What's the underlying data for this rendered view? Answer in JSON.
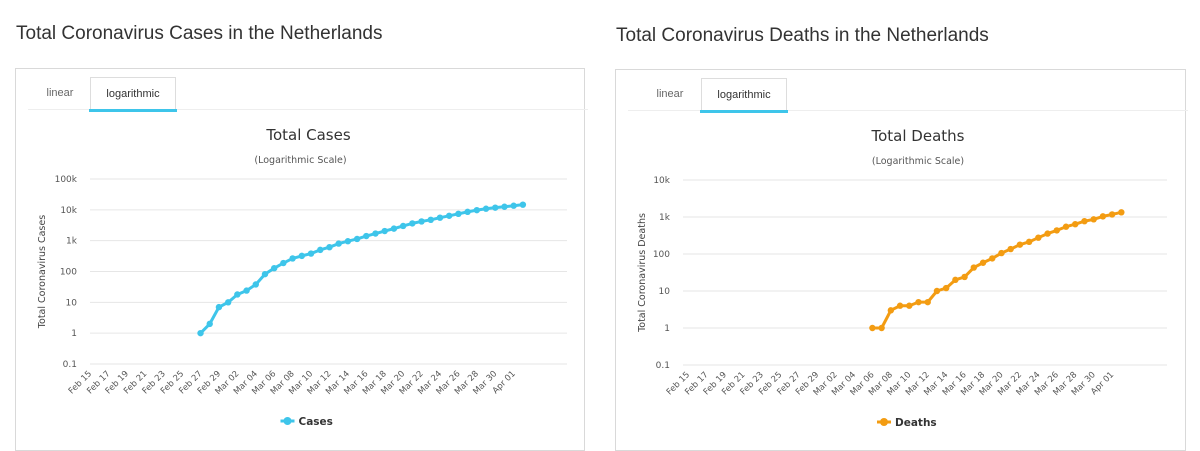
{
  "panels": [
    {
      "heading": "Total Coronavirus Cases in the Netherlands",
      "tabs": [
        "linear",
        "logarithmic"
      ],
      "active_tab": "logarithmic",
      "accent_color": "#3ec5ea"
    },
    {
      "heading": "Total Coronavirus Deaths in the Netherlands",
      "tabs": [
        "linear",
        "logarithmic"
      ],
      "active_tab": "logarithmic",
      "accent_color": "#3ec5ea"
    }
  ],
  "chart_data": [
    {
      "type": "line",
      "title": "Total Cases",
      "subtitle": "(Logarithmic Scale)",
      "ylabel": "Total Coronavirus Cases",
      "xlabel": "",
      "y_scale": "log",
      "ylim": [
        0.1,
        100000
      ],
      "y_ticks": [
        "100k",
        "10k",
        "1k",
        "100",
        "10",
        "1",
        "0.1"
      ],
      "grid": true,
      "legend": "bottom-center",
      "x_tick_labels": [
        "Feb 15",
        "Feb 17",
        "Feb 19",
        "Feb 21",
        "Feb 23",
        "Feb 25",
        "Feb 27",
        "Feb 29",
        "Mar 02",
        "Mar 04",
        "Mar 06",
        "Mar 08",
        "Mar 10",
        "Mar 12",
        "Mar 14",
        "Mar 16",
        "Mar 18",
        "Mar 20",
        "Mar 22",
        "Mar 24",
        "Mar 26",
        "Mar 28",
        "Mar 30",
        "Apr 01"
      ],
      "x": [
        "Feb 15",
        "Feb 16",
        "Feb 17",
        "Feb 18",
        "Feb 19",
        "Feb 20",
        "Feb 21",
        "Feb 22",
        "Feb 23",
        "Feb 24",
        "Feb 25",
        "Feb 26",
        "Feb 27",
        "Feb 28",
        "Feb 29",
        "Mar 01",
        "Mar 02",
        "Mar 03",
        "Mar 04",
        "Mar 05",
        "Mar 06",
        "Mar 07",
        "Mar 08",
        "Mar 09",
        "Mar 10",
        "Mar 11",
        "Mar 12",
        "Mar 13",
        "Mar 14",
        "Mar 15",
        "Mar 16",
        "Mar 17",
        "Mar 18",
        "Mar 19",
        "Mar 20",
        "Mar 21",
        "Mar 22",
        "Mar 23",
        "Mar 24",
        "Mar 25",
        "Mar 26",
        "Mar 27",
        "Mar 28",
        "Mar 29",
        "Mar 30",
        "Mar 31",
        "Apr 01",
        "Apr 02"
      ],
      "series": [
        {
          "name": "Cases",
          "color": "#3ec5ea",
          "values": [
            null,
            null,
            null,
            null,
            null,
            null,
            null,
            null,
            null,
            null,
            null,
            null,
            1,
            2,
            7,
            10,
            18,
            24,
            38,
            82,
            128,
            188,
            265,
            321,
            382,
            503,
            614,
            804,
            959,
            1135,
            1413,
            1705,
            2051,
            2460,
            2994,
            3631,
            4204,
            4749,
            5560,
            6412,
            7431,
            8603,
            9762,
            10866,
            11750,
            12595,
            13614,
            14697
          ]
        }
      ]
    },
    {
      "type": "line",
      "title": "Total Deaths",
      "subtitle": "(Logarithmic Scale)",
      "ylabel": "Total Coronavirus Deaths",
      "xlabel": "",
      "y_scale": "log",
      "ylim": [
        0.1,
        10000
      ],
      "y_ticks": [
        "10k",
        "1k",
        "100",
        "10",
        "1",
        "0.1"
      ],
      "grid": true,
      "legend": "bottom-center",
      "x_tick_labels": [
        "Feb 15",
        "Feb 17",
        "Feb 19",
        "Feb 21",
        "Feb 23",
        "Feb 25",
        "Feb 27",
        "Feb 29",
        "Mar 02",
        "Mar 04",
        "Mar 06",
        "Mar 08",
        "Mar 10",
        "Mar 12",
        "Mar 14",
        "Mar 16",
        "Mar 18",
        "Mar 20",
        "Mar 22",
        "Mar 24",
        "Mar 26",
        "Mar 28",
        "Mar 30",
        "Apr 01"
      ],
      "x": [
        "Feb 15",
        "Feb 16",
        "Feb 17",
        "Feb 18",
        "Feb 19",
        "Feb 20",
        "Feb 21",
        "Feb 22",
        "Feb 23",
        "Feb 24",
        "Feb 25",
        "Feb 26",
        "Feb 27",
        "Feb 28",
        "Feb 29",
        "Mar 01",
        "Mar 02",
        "Mar 03",
        "Mar 04",
        "Mar 05",
        "Mar 06",
        "Mar 07",
        "Mar 08",
        "Mar 09",
        "Mar 10",
        "Mar 11",
        "Mar 12",
        "Mar 13",
        "Mar 14",
        "Mar 15",
        "Mar 16",
        "Mar 17",
        "Mar 18",
        "Mar 19",
        "Mar 20",
        "Mar 21",
        "Mar 22",
        "Mar 23",
        "Mar 24",
        "Mar 25",
        "Mar 26",
        "Mar 27",
        "Mar 28",
        "Mar 29",
        "Mar 30",
        "Mar 31",
        "Apr 01",
        "Apr 02"
      ],
      "series": [
        {
          "name": "Deaths",
          "color": "#f39c12",
          "values": [
            null,
            null,
            null,
            null,
            null,
            null,
            null,
            null,
            null,
            null,
            null,
            null,
            null,
            null,
            null,
            null,
            null,
            null,
            null,
            null,
            1,
            1,
            3,
            4,
            4,
            5,
            5,
            10,
            12,
            20,
            24,
            43,
            58,
            76,
            106,
            136,
            179,
            213,
            276,
            356,
            434,
            546,
            639,
            771,
            864,
            1039,
            1173,
            1339
          ]
        }
      ]
    }
  ]
}
